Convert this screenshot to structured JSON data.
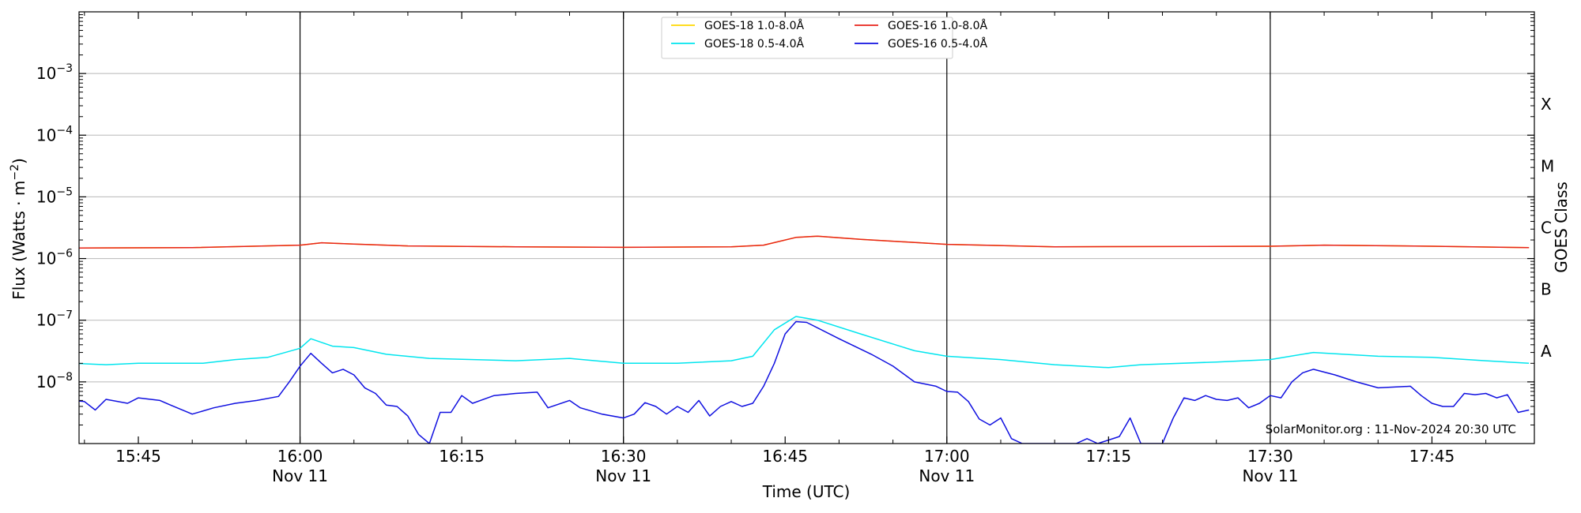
{
  "chart_data": {
    "type": "line",
    "xlabel": "Time (UTC)",
    "ylabel_main": "Flux (Watts · m",
    "ylabel_sup": "−2",
    "ylabel_close": ")",
    "y2label": "GOES Class",
    "y_scale": "log",
    "ylim": [
      1e-09,
      0.01
    ],
    "xlim": [
      "15:39:30",
      "17:54:30"
    ],
    "grid": "horizontal",
    "legend_position": "top-center",
    "credit": "SolarMonitor.org : 11-Nov-2024 20:30 UTC",
    "x_ticks": [
      {
        "time": "15:45",
        "label": "15:45",
        "date": ""
      },
      {
        "time": "16:00",
        "label": "16:00",
        "date": "Nov 11"
      },
      {
        "time": "16:15",
        "label": "16:15",
        "date": ""
      },
      {
        "time": "16:30",
        "label": "16:30",
        "date": "Nov 11"
      },
      {
        "time": "16:45",
        "label": "16:45",
        "date": ""
      },
      {
        "time": "17:00",
        "label": "17:00",
        "date": "Nov 11"
      },
      {
        "time": "17:15",
        "label": "17:15",
        "date": ""
      },
      {
        "time": "17:30",
        "label": "17:30",
        "date": "Nov 11"
      },
      {
        "time": "17:45",
        "label": "17:45",
        "date": ""
      }
    ],
    "vlines": [
      "16:00",
      "16:30",
      "17:00",
      "17:30"
    ],
    "y_ticks": [
      {
        "exp": -3,
        "base": "10",
        "sup": "−3"
      },
      {
        "exp": -4,
        "base": "10",
        "sup": "−4"
      },
      {
        "exp": -5,
        "base": "10",
        "sup": "−5"
      },
      {
        "exp": -6,
        "base": "10",
        "sup": "−6"
      },
      {
        "exp": -7,
        "base": "10",
        "sup": "−7"
      },
      {
        "exp": -8,
        "base": "10",
        "sup": "−8"
      }
    ],
    "goes_classes": [
      {
        "label": "X",
        "exp": -3.5
      },
      {
        "label": "M",
        "exp": -4.5
      },
      {
        "label": "C",
        "exp": -5.5
      },
      {
        "label": "B",
        "exp": -6.5
      },
      {
        "label": "A",
        "exp": -7.5
      }
    ],
    "series": [
      {
        "name": "GOES-18 1.0-8.0Å",
        "color": "#FFD700",
        "width": 1.5,
        "points": [
          [
            "15:39",
            "1.48e-6"
          ],
          [
            "15:50",
            "1.50e-6"
          ],
          [
            "16:00",
            "1.65e-6"
          ],
          [
            "16:02",
            "1.80e-6"
          ],
          [
            "16:05",
            "1.72e-6"
          ],
          [
            "16:10",
            "1.60e-6"
          ],
          [
            "16:20",
            "1.55e-6"
          ],
          [
            "16:30",
            "1.52e-6"
          ],
          [
            "16:40",
            "1.55e-6"
          ],
          [
            "16:43",
            "1.65e-6"
          ],
          [
            "16:46",
            "2.20e-6"
          ],
          [
            "16:48",
            "2.30e-6"
          ],
          [
            "16:52",
            "2.05e-6"
          ],
          [
            "17:00",
            "1.70e-6"
          ],
          [
            "17:10",
            "1.55e-6"
          ],
          [
            "17:30",
            "1.58e-6"
          ],
          [
            "17:35",
            "1.65e-6"
          ],
          [
            "17:45",
            "1.58e-6"
          ],
          [
            "17:54",
            "1.50e-6"
          ]
        ]
      },
      {
        "name": "GOES-16 1.0-8.0Å",
        "color": "#E8231A",
        "width": 1.5,
        "points": [
          [
            "15:39",
            "1.48e-6"
          ],
          [
            "15:50",
            "1.50e-6"
          ],
          [
            "16:00",
            "1.65e-6"
          ],
          [
            "16:02",
            "1.80e-6"
          ],
          [
            "16:05",
            "1.72e-6"
          ],
          [
            "16:10",
            "1.60e-6"
          ],
          [
            "16:20",
            "1.55e-6"
          ],
          [
            "16:30",
            "1.52e-6"
          ],
          [
            "16:40",
            "1.55e-6"
          ],
          [
            "16:43",
            "1.65e-6"
          ],
          [
            "16:46",
            "2.20e-6"
          ],
          [
            "16:48",
            "2.30e-6"
          ],
          [
            "16:52",
            "2.05e-6"
          ],
          [
            "17:00",
            "1.70e-6"
          ],
          [
            "17:10",
            "1.55e-6"
          ],
          [
            "17:30",
            "1.58e-6"
          ],
          [
            "17:35",
            "1.65e-6"
          ],
          [
            "17:45",
            "1.58e-6"
          ],
          [
            "17:54",
            "1.50e-6"
          ]
        ]
      },
      {
        "name": "GOES-18 0.5-4.0Å",
        "color": "#00E5EE",
        "width": 1.5,
        "points": [
          [
            "15:39",
            "2.0e-8"
          ],
          [
            "15:42",
            "1.9e-8"
          ],
          [
            "15:45",
            "2.0e-8"
          ],
          [
            "15:48",
            "2.0e-8"
          ],
          [
            "15:51",
            "2.0e-8"
          ],
          [
            "15:54",
            "2.3e-8"
          ],
          [
            "15:57",
            "2.5e-8"
          ],
          [
            "16:00",
            "3.5e-8"
          ],
          [
            "16:01",
            "5.0e-8"
          ],
          [
            "16:03",
            "3.8e-8"
          ],
          [
            "16:05",
            "3.6e-8"
          ],
          [
            "16:08",
            "2.8e-8"
          ],
          [
            "16:12",
            "2.4e-8"
          ],
          [
            "16:20",
            "2.2e-8"
          ],
          [
            "16:25",
            "2.4e-8"
          ],
          [
            "16:30",
            "2.0e-8"
          ],
          [
            "16:35",
            "2.0e-8"
          ],
          [
            "16:40",
            "2.2e-8"
          ],
          [
            "16:42",
            "2.6e-8"
          ],
          [
            "16:44",
            "7.0e-8"
          ],
          [
            "16:46",
            "1.15e-7"
          ],
          [
            "16:48",
            "1.0e-7"
          ],
          [
            "16:52",
            "6.0e-8"
          ],
          [
            "16:57",
            "3.2e-8"
          ],
          [
            "17:00",
            "2.6e-8"
          ],
          [
            "17:05",
            "2.3e-8"
          ],
          [
            "17:10",
            "1.9e-8"
          ],
          [
            "17:15",
            "1.7e-8"
          ],
          [
            "17:18",
            "1.9e-8"
          ],
          [
            "17:25",
            "2.1e-8"
          ],
          [
            "17:30",
            "2.3e-8"
          ],
          [
            "17:34",
            "3.0e-8"
          ],
          [
            "17:40",
            "2.6e-8"
          ],
          [
            "17:45",
            "2.5e-8"
          ],
          [
            "17:50",
            "2.2e-8"
          ],
          [
            "17:54",
            "2.0e-8"
          ]
        ]
      },
      {
        "name": "GOES-16 0.5-4.0Å",
        "color": "#1010E0",
        "width": 1.5,
        "points": [
          [
            "15:39",
            "5.0e-9"
          ],
          [
            "15:40",
            "4.8e-9"
          ],
          [
            "15:41",
            "3.5e-9"
          ],
          [
            "15:42",
            "5.2e-9"
          ],
          [
            "15:44",
            "4.5e-9"
          ],
          [
            "15:45",
            "5.5e-9"
          ],
          [
            "15:47",
            "5.0e-9"
          ],
          [
            "15:48",
            "4.2e-9"
          ],
          [
            "15:50",
            "3.0e-9"
          ],
          [
            "15:52",
            "3.8e-9"
          ],
          [
            "15:54",
            "4.5e-9"
          ],
          [
            "15:56",
            "5.0e-9"
          ],
          [
            "15:58",
            "5.8e-9"
          ],
          [
            "15:59",
            "1.0e-8"
          ],
          [
            "16:00",
            "1.8e-8"
          ],
          [
            "16:01",
            "2.9e-8"
          ],
          [
            "16:02",
            "2.0e-8"
          ],
          [
            "16:03",
            "1.4e-8"
          ],
          [
            "16:04",
            "1.6e-8"
          ],
          [
            "16:05",
            "1.3e-8"
          ],
          [
            "16:06",
            "8.0e-9"
          ],
          [
            "16:07",
            "6.5e-9"
          ],
          [
            "16:08",
            "4.2e-9"
          ],
          [
            "16:09",
            "4.0e-9"
          ],
          [
            "16:10",
            "2.8e-9"
          ],
          [
            "16:11",
            "1.4e-9"
          ],
          [
            "16:12",
            "1.0e-9"
          ],
          [
            "16:13",
            "3.2e-9"
          ],
          [
            "16:14",
            "3.2e-9"
          ],
          [
            "16:15",
            "6.0e-9"
          ],
          [
            "16:16",
            "4.5e-9"
          ],
          [
            "16:18",
            "6.0e-9"
          ],
          [
            "16:20",
            "6.5e-9"
          ],
          [
            "16:22",
            "6.8e-9"
          ],
          [
            "16:23",
            "3.8e-9"
          ],
          [
            "16:25",
            "5.0e-9"
          ],
          [
            "16:26",
            "3.8e-9"
          ],
          [
            "16:28",
            "3.0e-9"
          ],
          [
            "16:30",
            "2.6e-9"
          ],
          [
            "16:31",
            "3.0e-9"
          ],
          [
            "16:32",
            "4.6e-9"
          ],
          [
            "16:33",
            "4.0e-9"
          ],
          [
            "16:34",
            "3.0e-9"
          ],
          [
            "16:35",
            "4.0e-9"
          ],
          [
            "16:36",
            "3.2e-9"
          ],
          [
            "16:37",
            "5.0e-9"
          ],
          [
            "16:38",
            "2.8e-9"
          ],
          [
            "16:39",
            "4.0e-9"
          ],
          [
            "16:40",
            "4.8e-9"
          ],
          [
            "16:41",
            "4.0e-9"
          ],
          [
            "16:42",
            "4.5e-9"
          ],
          [
            "16:43",
            "8.5e-9"
          ],
          [
            "16:44",
            "2.0e-8"
          ],
          [
            "16:45",
            "6.0e-8"
          ],
          [
            "16:46",
            "9.5e-8"
          ],
          [
            "16:47",
            "9.2e-8"
          ],
          [
            "16:50",
            "5.0e-8"
          ],
          [
            "16:53",
            "2.8e-8"
          ],
          [
            "16:55",
            "1.8e-8"
          ],
          [
            "16:57",
            "1.0e-8"
          ],
          [
            "16:59",
            "8.5e-9"
          ],
          [
            "17:00",
            "7.0e-9"
          ],
          [
            "17:01",
            "6.8e-9"
          ],
          [
            "17:02",
            "4.8e-9"
          ],
          [
            "17:03",
            "2.5e-9"
          ],
          [
            "17:04",
            "2.0e-9"
          ],
          [
            "17:05",
            "2.6e-9"
          ],
          [
            "17:06",
            "1.2e-9"
          ],
          [
            "17:07",
            "1.0e-9"
          ],
          [
            "17:12",
            "1.0e-9"
          ],
          [
            "17:13",
            "1.2e-9"
          ],
          [
            "17:14",
            "1.0e-9"
          ],
          [
            "17:16",
            "1.3e-9"
          ],
          [
            "17:17",
            "2.6e-9"
          ],
          [
            "17:18",
            "1.0e-9"
          ],
          [
            "17:20",
            "1.0e-9"
          ],
          [
            "17:21",
            "2.6e-9"
          ],
          [
            "17:22",
            "5.5e-9"
          ],
          [
            "17:23",
            "5.0e-9"
          ],
          [
            "17:24",
            "6.0e-9"
          ],
          [
            "17:25",
            "5.2e-9"
          ],
          [
            "17:26",
            "5.0e-9"
          ],
          [
            "17:27",
            "5.5e-9"
          ],
          [
            "17:28",
            "3.8e-9"
          ],
          [
            "17:29",
            "4.5e-9"
          ],
          [
            "17:30",
            "6.0e-9"
          ],
          [
            "17:31",
            "5.5e-9"
          ],
          [
            "17:32",
            "1.0e-8"
          ],
          [
            "17:33",
            "1.4e-8"
          ],
          [
            "17:34",
            "1.6e-8"
          ],
          [
            "17:36",
            "1.3e-8"
          ],
          [
            "17:38",
            "1.0e-8"
          ],
          [
            "17:40",
            "8.0e-9"
          ],
          [
            "17:43",
            "8.5e-9"
          ],
          [
            "17:44",
            "6.0e-9"
          ],
          [
            "17:45",
            "4.5e-9"
          ],
          [
            "17:46",
            "4.0e-9"
          ],
          [
            "17:47",
            "4.0e-9"
          ],
          [
            "17:48",
            "6.5e-9"
          ],
          [
            "17:49",
            "6.2e-9"
          ],
          [
            "17:50",
            "6.5e-9"
          ],
          [
            "17:51",
            "5.5e-9"
          ],
          [
            "17:52",
            "6.2e-9"
          ],
          [
            "17:53",
            "3.2e-9"
          ],
          [
            "17:54",
            "3.5e-9"
          ]
        ]
      }
    ]
  }
}
